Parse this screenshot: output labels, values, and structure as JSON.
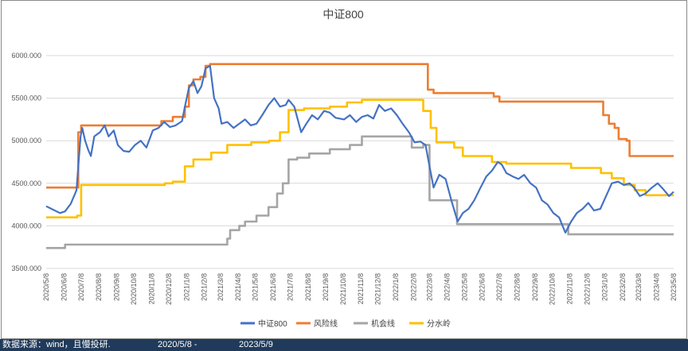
{
  "chart_data": {
    "type": "line",
    "title": "中证800",
    "ylim": [
      3500,
      6000
    ],
    "yticks": [
      "6000.000",
      "5500.000",
      "5000.000",
      "4500.000",
      "4000.000",
      "3500.000"
    ],
    "x_start": "2020/5/8",
    "x_end": "2023/5/8",
    "xticks": [
      "2020/5/8",
      "2020/6/8",
      "2020/7/8",
      "2020/8/8",
      "2020/9/8",
      "2020/10/8",
      "2020/11/8",
      "2020/12/8",
      "2021/1/8",
      "2021/2/8",
      "2021/3/8",
      "2021/4/8",
      "2021/5/8",
      "2021/6/8",
      "2021/7/8",
      "2021/8/8",
      "2021/9/8",
      "2021/10/8",
      "2021/11/8",
      "2021/12/8",
      "2022/1/8",
      "2022/2/8",
      "2022/3/8",
      "2022/4/8",
      "2022/5/8",
      "2022/6/8",
      "2022/7/8",
      "2022/8/8",
      "2022/9/8",
      "2022/10/8",
      "2022/11/8",
      "2022/12/8",
      "2023/1/8",
      "2023/2/8",
      "2023/3/8",
      "2023/4/8",
      "2023/5/8"
    ],
    "grid": "horizontal",
    "legend_position": "bottom",
    "series": [
      {
        "name": "中证800",
        "color": "#4472c4",
        "style": "line",
        "points": [
          [
            "2020/5/8",
            4230
          ],
          [
            "2020/5/20",
            4190
          ],
          [
            "2020/6/1",
            4150
          ],
          [
            "2020/6/10",
            4170
          ],
          [
            "2020/6/20",
            4260
          ],
          [
            "2020/6/30",
            4420
          ],
          [
            "2020/7/3",
            4700
          ],
          [
            "2020/7/7",
            5050
          ],
          [
            "2020/7/10",
            5150
          ],
          [
            "2020/7/15",
            5000
          ],
          [
            "2020/7/20",
            4900
          ],
          [
            "2020/7/25",
            4820
          ],
          [
            "2020/7/31",
            5050
          ],
          [
            "2020/8/10",
            5100
          ],
          [
            "2020/8/18",
            5180
          ],
          [
            "2020/8/25",
            5050
          ],
          [
            "2020/9/3",
            5120
          ],
          [
            "2020/9/10",
            4950
          ],
          [
            "2020/9/20",
            4880
          ],
          [
            "2020/9/30",
            4870
          ],
          [
            "2020/10/10",
            4950
          ],
          [
            "2020/10/20",
            5000
          ],
          [
            "2020/10/30",
            4920
          ],
          [
            "2020/11/10",
            5120
          ],
          [
            "2020/11/20",
            5150
          ],
          [
            "2020/11/30",
            5220
          ],
          [
            "2020/12/10",
            5160
          ],
          [
            "2020/12/20",
            5180
          ],
          [
            "2020/12/31",
            5230
          ],
          [
            "2021/1/5",
            5400
          ],
          [
            "2021/1/12",
            5620
          ],
          [
            "2021/1/20",
            5700
          ],
          [
            "2021/1/27",
            5560
          ],
          [
            "2021/2/3",
            5640
          ],
          [
            "2021/2/10",
            5850
          ],
          [
            "2021/2/18",
            5880
          ],
          [
            "2021/2/25",
            5500
          ],
          [
            "2021/3/5",
            5380
          ],
          [
            "2021/3/10",
            5200
          ],
          [
            "2021/3/20",
            5220
          ],
          [
            "2021/3/31",
            5150
          ],
          [
            "2021/4/10",
            5200
          ],
          [
            "2021/4/20",
            5250
          ],
          [
            "2021/4/30",
            5180
          ],
          [
            "2021/5/10",
            5200
          ],
          [
            "2021/5/20",
            5300
          ],
          [
            "2021/5/31",
            5420
          ],
          [
            "2021/6/10",
            5500
          ],
          [
            "2021/6/20",
            5400
          ],
          [
            "2021/6/30",
            5420
          ],
          [
            "2021/7/5",
            5480
          ],
          [
            "2021/7/15",
            5400
          ],
          [
            "2021/7/27",
            5100
          ],
          [
            "2021/8/5",
            5200
          ],
          [
            "2021/8/15",
            5300
          ],
          [
            "2021/8/25",
            5250
          ],
          [
            "2021/9/5",
            5350
          ],
          [
            "2021/9/15",
            5330
          ],
          [
            "2021/9/25",
            5270
          ],
          [
            "2021/10/10",
            5250
          ],
          [
            "2021/10/20",
            5300
          ],
          [
            "2021/10/31",
            5220
          ],
          [
            "2021/11/10",
            5280
          ],
          [
            "2021/11/20",
            5300
          ],
          [
            "2021/11/30",
            5260
          ],
          [
            "2021/12/10",
            5420
          ],
          [
            "2021/12/20",
            5350
          ],
          [
            "2021/12/31",
            5380
          ],
          [
            "2022/1/10",
            5300
          ],
          [
            "2022/1/20",
            5200
          ],
          [
            "2022/1/31",
            5100
          ],
          [
            "2022/2/10",
            4980
          ],
          [
            "2022/2/20",
            4990
          ],
          [
            "2022/3/1",
            4950
          ],
          [
            "2022/3/8",
            4700
          ],
          [
            "2022/3/15",
            4450
          ],
          [
            "2022/3/25",
            4600
          ],
          [
            "2022/4/5",
            4550
          ],
          [
            "2022/4/15",
            4300
          ],
          [
            "2022/4/26",
            4050
          ],
          [
            "2022/5/5",
            4150
          ],
          [
            "2022/5/15",
            4200
          ],
          [
            "2022/5/25",
            4300
          ],
          [
            "2022/6/5",
            4450
          ],
          [
            "2022/6/15",
            4580
          ],
          [
            "2022/6/25",
            4650
          ],
          [
            "2022/7/5",
            4750
          ],
          [
            "2022/7/12",
            4720
          ],
          [
            "2022/7/20",
            4620
          ],
          [
            "2022/7/31",
            4580
          ],
          [
            "2022/8/10",
            4550
          ],
          [
            "2022/8/20",
            4600
          ],
          [
            "2022/8/31",
            4500
          ],
          [
            "2022/9/10",
            4450
          ],
          [
            "2022/9/20",
            4300
          ],
          [
            "2022/9/30",
            4250
          ],
          [
            "2022/10/10",
            4150
          ],
          [
            "2022/10/20",
            4100
          ],
          [
            "2022/10/31",
            3920
          ],
          [
            "2022/11/10",
            4050
          ],
          [
            "2022/11/20",
            4150
          ],
          [
            "2022/11/30",
            4200
          ],
          [
            "2022/12/10",
            4270
          ],
          [
            "2022/12/20",
            4180
          ],
          [
            "2022/12/31",
            4200
          ],
          [
            "2023/1/10",
            4350
          ],
          [
            "2023/1/20",
            4500
          ],
          [
            "2023/1/31",
            4520
          ],
          [
            "2023/2/10",
            4480
          ],
          [
            "2023/2/20",
            4500
          ],
          [
            "2023/2/28",
            4450
          ],
          [
            "2023/3/10",
            4350
          ],
          [
            "2023/3/20",
            4380
          ],
          [
            "2023/3/31",
            4450
          ],
          [
            "2023/4/10",
            4500
          ],
          [
            "2023/4/20",
            4430
          ],
          [
            "2023/4/30",
            4350
          ],
          [
            "2023/5/8",
            4400
          ]
        ]
      },
      {
        "name": "风险线",
        "color": "#ed7d31",
        "style": "step",
        "points": [
          [
            "2020/5/8",
            4450
          ],
          [
            "2020/7/1",
            4450
          ],
          [
            "2020/7/3",
            5100
          ],
          [
            "2020/7/8",
            5180
          ],
          [
            "2020/11/20",
            5180
          ],
          [
            "2020/11/25",
            5230
          ],
          [
            "2020/12/15",
            5280
          ],
          [
            "2021/1/5",
            5400
          ],
          [
            "2021/1/12",
            5650
          ],
          [
            "2021/1/20",
            5720
          ],
          [
            "2021/2/1",
            5750
          ],
          [
            "2021/2/10",
            5880
          ],
          [
            "2021/2/18",
            5900
          ],
          [
            "2022/2/28",
            5900
          ],
          [
            "2022/3/5",
            5600
          ],
          [
            "2022/3/15",
            5560
          ],
          [
            "2022/6/20",
            5560
          ],
          [
            "2022/6/28",
            5520
          ],
          [
            "2022/7/8",
            5460
          ],
          [
            "2022/12/31",
            5460
          ],
          [
            "2023/1/5",
            5300
          ],
          [
            "2023/1/15",
            5200
          ],
          [
            "2023/1/25",
            5150
          ],
          [
            "2023/2/1",
            5020
          ],
          [
            "2023/2/15",
            5000
          ],
          [
            "2023/2/20",
            4820
          ],
          [
            "2023/5/8",
            4820
          ]
        ]
      },
      {
        "name": "机会线",
        "color": "#a5a5a5",
        "style": "step",
        "points": [
          [
            "2020/5/8",
            3740
          ],
          [
            "2020/6/8",
            3740
          ],
          [
            "2020/6/10",
            3780
          ],
          [
            "2021/3/10",
            3780
          ],
          [
            "2021/3/20",
            3850
          ],
          [
            "2021/3/25",
            3950
          ],
          [
            "2021/4/10",
            4000
          ],
          [
            "2021/4/20",
            4050
          ],
          [
            "2021/5/10",
            4120
          ],
          [
            "2021/5/31",
            4220
          ],
          [
            "2021/6/15",
            4380
          ],
          [
            "2021/6/25",
            4500
          ],
          [
            "2021/7/5",
            4780
          ],
          [
            "2021/7/20",
            4800
          ],
          [
            "2021/8/10",
            4850
          ],
          [
            "2021/9/15",
            4900
          ],
          [
            "2021/10/20",
            4950
          ],
          [
            "2021/11/10",
            5050
          ],
          [
            "2022/2/1",
            5050
          ],
          [
            "2022/2/5",
            4920
          ],
          [
            "2022/2/25",
            4950
          ],
          [
            "2022/3/8",
            4300
          ],
          [
            "2022/4/20",
            4300
          ],
          [
            "2022/4/25",
            4020
          ],
          [
            "2022/11/1",
            4020
          ],
          [
            "2022/11/5",
            3900
          ],
          [
            "2023/5/8",
            3900
          ]
        ]
      },
      {
        "name": "分水岭",
        "color": "#ffc000",
        "style": "step",
        "points": [
          [
            "2020/5/8",
            4100
          ],
          [
            "2020/7/1",
            4120
          ],
          [
            "2020/7/8",
            4480
          ],
          [
            "2020/11/20",
            4480
          ],
          [
            "2020/12/1",
            4500
          ],
          [
            "2020/12/15",
            4520
          ],
          [
            "2021/1/5",
            4700
          ],
          [
            "2021/1/20",
            4780
          ],
          [
            "2021/2/20",
            4860
          ],
          [
            "2021/3/20",
            4950
          ],
          [
            "2021/5/1",
            4980
          ],
          [
            "2021/6/1",
            5000
          ],
          [
            "2021/6/20",
            5100
          ],
          [
            "2021/7/5",
            5360
          ],
          [
            "2021/8/1",
            5380
          ],
          [
            "2021/9/15",
            5400
          ],
          [
            "2021/10/15",
            5450
          ],
          [
            "2021/11/10",
            5480
          ],
          [
            "2022/2/15",
            5480
          ],
          [
            "2022/2/25",
            5350
          ],
          [
            "2022/3/10",
            5150
          ],
          [
            "2022/3/20",
            4980
          ],
          [
            "2022/4/20",
            4920
          ],
          [
            "2022/5/5",
            4820
          ],
          [
            "2022/6/25",
            4750
          ],
          [
            "2022/7/20",
            4730
          ],
          [
            "2022/11/1",
            4730
          ],
          [
            "2022/11/10",
            4680
          ],
          [
            "2023/1/1",
            4620
          ],
          [
            "2023/1/20",
            4560
          ],
          [
            "2023/2/10",
            4480
          ],
          [
            "2023/3/1",
            4420
          ],
          [
            "2023/3/20",
            4360
          ],
          [
            "2023/5/8",
            4360
          ]
        ]
      }
    ]
  },
  "footer": {
    "source": "数据来源：wind，且慢投研.",
    "date_from": "2020/5/8 -",
    "date_to": "2023/5/9"
  }
}
